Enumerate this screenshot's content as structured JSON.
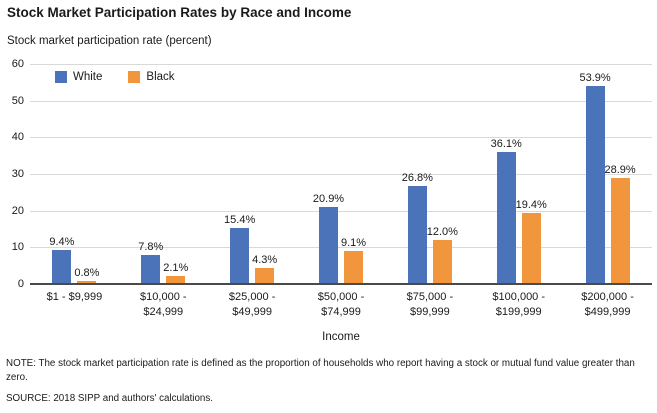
{
  "title": "Stock Market Participation Rates by Race and Income",
  "y_axis_title": "Stock market participation rate (percent)",
  "x_axis_title": "Income",
  "note": "NOTE: The stock market participation rate is defined as the proportion of households who report having a stock or mutual fund value greater than zero.",
  "source": "SOURCE: 2018 SIPP and authors' calculations.",
  "colors": {
    "white_series": "#4A73B9",
    "black_series": "#F2963D",
    "gridline": "#D9D9D9",
    "axis_line": "#4A4A4A"
  },
  "legend": [
    {
      "label": "White",
      "color": "#4A73B9"
    },
    {
      "label": "Black",
      "color": "#F2963D"
    }
  ],
  "chart_data": {
    "type": "bar",
    "categories": [
      "$1 - $9,999",
      "$10,000 -\n$24,999",
      "$25,000 -\n$49,999",
      "$50,000 -\n$74,999",
      "$75,000 -\n$99,999",
      "$100,000 -\n$199,999",
      "$200,000 -\n$499,999"
    ],
    "series": [
      {
        "name": "White",
        "values": [
          9.4,
          7.8,
          15.4,
          20.9,
          26.8,
          36.1,
          53.9
        ]
      },
      {
        "name": "Black",
        "values": [
          0.8,
          2.1,
          4.3,
          9.1,
          12.0,
          19.4,
          28.9
        ]
      }
    ],
    "value_labels": [
      [
        "9.4%",
        "7.8%",
        "15.4%",
        "20.9%",
        "26.8%",
        "36.1%",
        "53.9%"
      ],
      [
        "0.8%",
        "2.1%",
        "4.3%",
        "9.1%",
        "12.0%",
        "19.4%",
        "28.9%"
      ]
    ],
    "ylim": [
      0,
      60
    ],
    "yticks": [
      0,
      10,
      20,
      30,
      40,
      50,
      60
    ],
    "grid": "horizontal",
    "legend_position": "top-left-inside"
  }
}
